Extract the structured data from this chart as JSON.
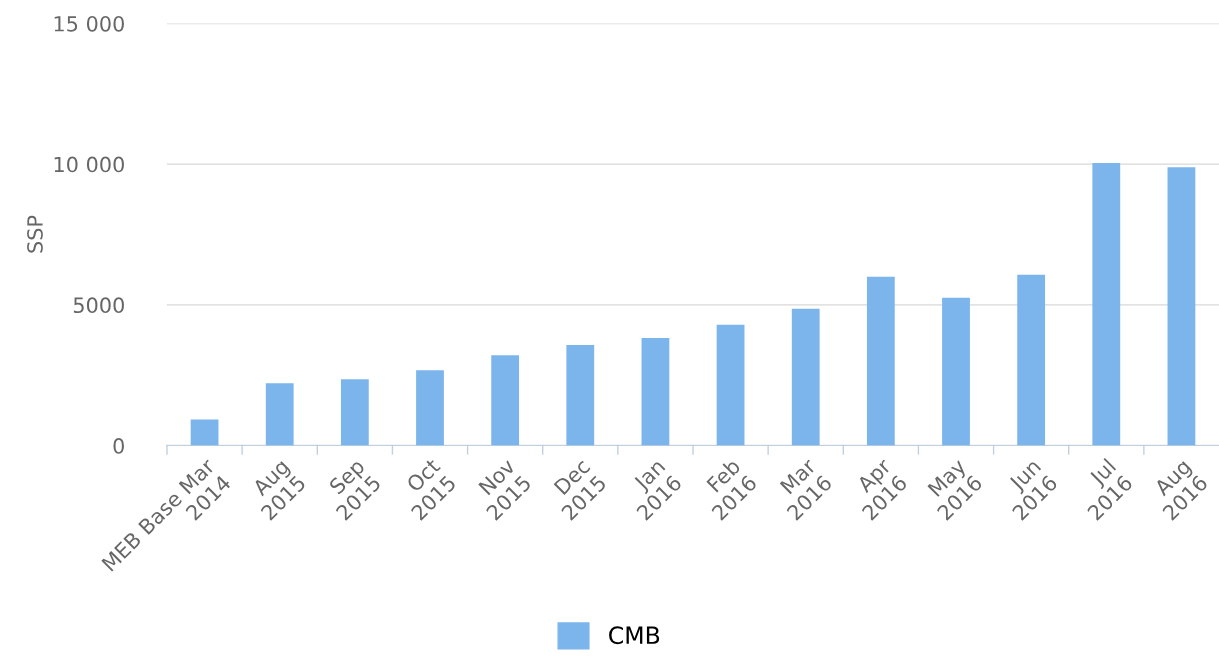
{
  "chart_data": {
    "type": "bar",
    "ylabel": "SSP",
    "categories": [
      "MEB Base Mar 2014",
      "Aug 2015",
      "Sep 2015",
      "Oct 2015",
      "Nov 2015",
      "Dec 2015",
      "Jan 2016",
      "Feb 2016",
      "Mar 2016",
      "Apr 2016",
      "May 2016",
      "Jun 2016",
      "Jul 2016",
      "Aug 2016"
    ],
    "series": [
      {
        "name": "CMB",
        "color": "#7cb5ec",
        "values": [
          930,
          2210,
          2360,
          2680,
          3210,
          3570,
          3820,
          4290,
          4860,
          6000,
          5250,
          6070,
          10040,
          9890
        ]
      }
    ],
    "ylim": [
      0,
      15000
    ],
    "yticks": [
      0,
      5000,
      {
        "value": 10000,
        "label": "10 000"
      },
      {
        "value": 15000,
        "label": "15 000"
      }
    ],
    "grid": "y",
    "legend": "bottom"
  }
}
